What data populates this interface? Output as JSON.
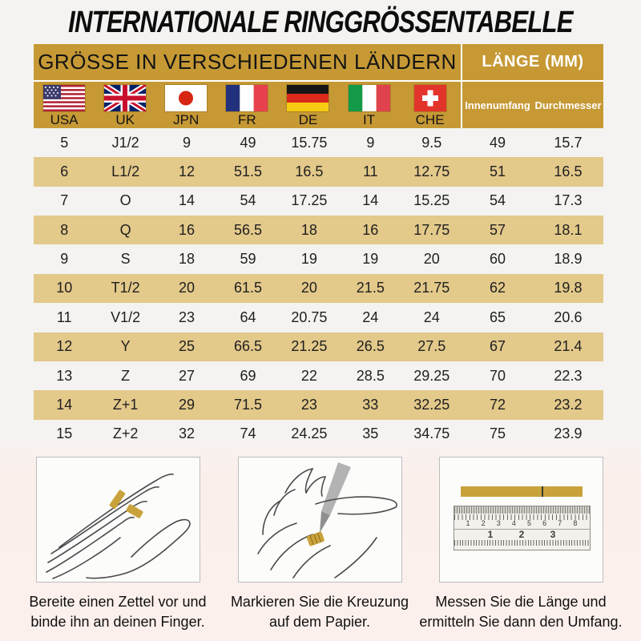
{
  "title": "INTERNATIONALE RINGGRÖSSENTABELLE",
  "table": {
    "header_left": "GRÖSSE IN VERSCHIEDENEN LÄNDERN",
    "header_right": "LÄNGE (MM)",
    "countries": [
      {
        "label": "USA",
        "flag": "usa-flag"
      },
      {
        "label": "UK",
        "flag": "uk-flag"
      },
      {
        "label": "JPN",
        "flag": "japan-flag"
      },
      {
        "label": "FR",
        "flag": "france-flag"
      },
      {
        "label": "DE",
        "flag": "germany-flag"
      },
      {
        "label": "IT",
        "flag": "italy-flag"
      },
      {
        "label": "CHE",
        "flag": "switzerland-flag"
      }
    ],
    "length_columns": [
      "Innenumfang",
      "Durchmesser"
    ],
    "rows": [
      [
        "5",
        "J1/2",
        "9",
        "49",
        "15.75",
        "9",
        "9.5",
        "49",
        "15.7"
      ],
      [
        "6",
        "L1/2",
        "12",
        "51.5",
        "16.5",
        "11",
        "12.75",
        "51",
        "16.5"
      ],
      [
        "7",
        "O",
        "14",
        "54",
        "17.25",
        "14",
        "15.25",
        "54",
        "17.3"
      ],
      [
        "8",
        "Q",
        "16",
        "56.5",
        "18",
        "16",
        "17.75",
        "57",
        "18.1"
      ],
      [
        "9",
        "S",
        "18",
        "59",
        "19",
        "19",
        "20",
        "60",
        "18.9"
      ],
      [
        "10",
        "T1/2",
        "20",
        "61.5",
        "20",
        "21.5",
        "21.75",
        "62",
        "19.8"
      ],
      [
        "11",
        "V1/2",
        "23",
        "64",
        "20.75",
        "24",
        "24",
        "65",
        "20.6"
      ],
      [
        "12",
        "Y",
        "25",
        "66.5",
        "21.25",
        "26.5",
        "27.5",
        "67",
        "21.4"
      ],
      [
        "13",
        "Z",
        "27",
        "69",
        "22",
        "28.5",
        "29.25",
        "70",
        "22.3"
      ],
      [
        "14",
        "Z+1",
        "29",
        "71.5",
        "23",
        "33",
        "32.25",
        "72",
        "23.2"
      ],
      [
        "15",
        "Z+2",
        "32",
        "74",
        "24.25",
        "35",
        "34.75",
        "75",
        "23.9"
      ]
    ]
  },
  "instructions": [
    {
      "illustration": "hand-with-paper-strip",
      "caption_line1": "Bereite einen Zettel vor und",
      "caption_line2": "binde ihn an deinen Finger."
    },
    {
      "illustration": "marking-crossing-with-pen",
      "caption_line1": "Markieren Sie die Kreuzung",
      "caption_line2": "auf dem Papier."
    },
    {
      "illustration": "ruler-measuring-strip",
      "caption_line1": "Messen Sie die Länge und",
      "caption_line2": "ermitteln Sie dann den Umfang.",
      "ruler": {
        "top_scale": [
          "1",
          "2",
          "3",
          "4",
          "5",
          "6",
          "7",
          "8"
        ],
        "bottom_scale": [
          "1",
          "2",
          "3"
        ]
      }
    }
  ],
  "colors": {
    "header_gold": "#C69935",
    "row_tan": "#E3C98A",
    "page_top": "#F4F3F1",
    "page_bottom_pink": "#FCF0ED",
    "header_text_light": "#FFFFFF",
    "text_dark": "#141414",
    "paper_strip_gold": "#C9A23C"
  }
}
